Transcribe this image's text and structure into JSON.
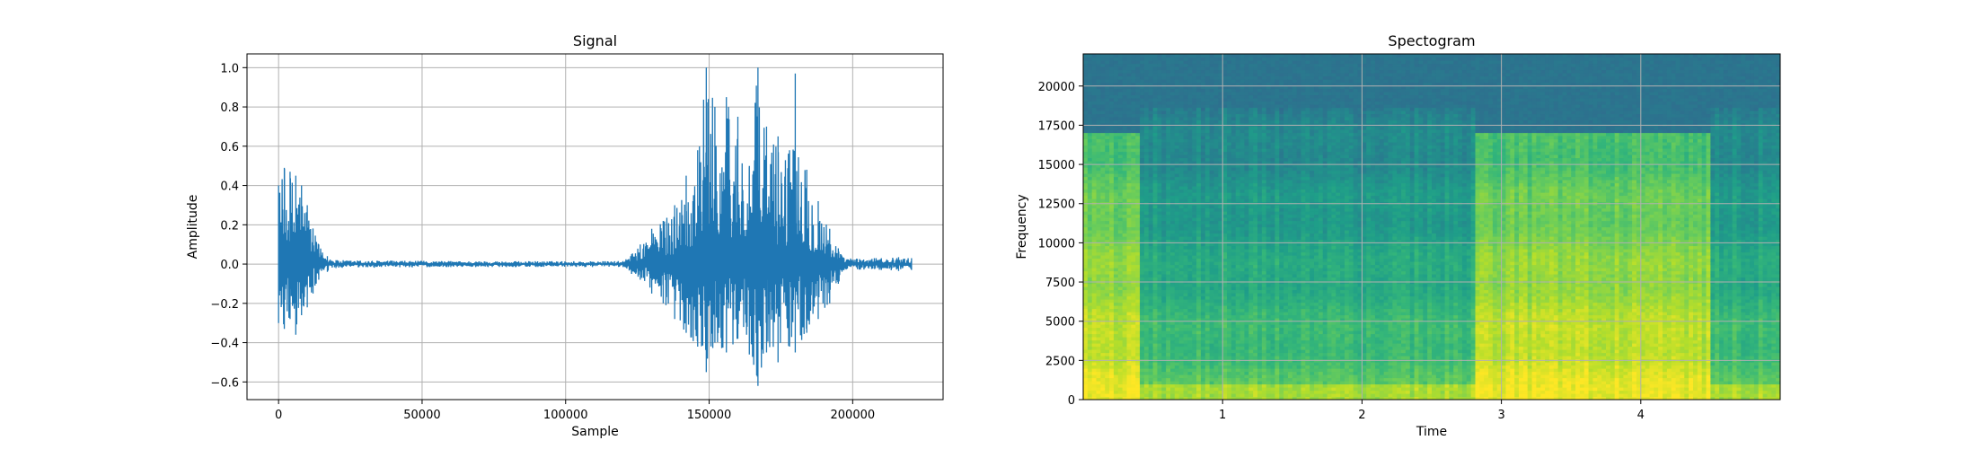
{
  "chart_data": [
    {
      "type": "line",
      "title": "Signal",
      "xlabel": "Sample",
      "ylabel": "Amplitude",
      "xlim": [
        -11000,
        231500
      ],
      "ylim": [
        -0.69,
        1.07
      ],
      "xticks": [
        0,
        50000,
        100000,
        150000,
        200000
      ],
      "xtick_labels": [
        "0",
        "50000",
        "100000",
        "150000",
        "200000"
      ],
      "yticks": [
        -0.6,
        -0.4,
        -0.2,
        0.0,
        0.2,
        0.4,
        0.6,
        0.8,
        1.0
      ],
      "ytick_labels": [
        "−0.6",
        "−0.4",
        "−0.2",
        "0.0",
        "0.2",
        "0.4",
        "0.6",
        "0.8",
        "1.0"
      ],
      "grid": true,
      "series": [
        {
          "color": "#1f77b4",
          "x_start": 0,
          "x_end": 220500,
          "envelope_points": [
            [
              0,
              0.4,
              -0.3
            ],
            [
              2000,
              0.49,
              -0.33
            ],
            [
              4000,
              0.47,
              -0.28
            ],
            [
              6000,
              0.45,
              -0.36
            ],
            [
              8000,
              0.4,
              -0.26
            ],
            [
              10000,
              0.3,
              -0.22
            ],
            [
              12000,
              0.18,
              -0.15
            ],
            [
              14000,
              0.1,
              -0.08
            ],
            [
              17000,
              0.04,
              -0.04
            ],
            [
              20000,
              0.02,
              -0.02
            ],
            [
              60000,
              0.015,
              -0.015
            ],
            [
              120000,
              0.015,
              -0.015
            ],
            [
              123000,
              0.05,
              -0.05
            ],
            [
              126000,
              0.1,
              -0.08
            ],
            [
              130000,
              0.18,
              -0.15
            ],
            [
              134000,
              0.22,
              -0.2
            ],
            [
              138000,
              0.3,
              -0.28
            ],
            [
              142000,
              0.45,
              -0.35
            ],
            [
              146000,
              0.58,
              -0.42
            ],
            [
              149000,
              1.0,
              -0.55
            ],
            [
              152000,
              0.8,
              -0.4
            ],
            [
              156000,
              0.85,
              -0.45
            ],
            [
              160000,
              0.75,
              -0.38
            ],
            [
              164000,
              0.5,
              -0.46
            ],
            [
              167000,
              1.0,
              -0.62
            ],
            [
              170000,
              0.7,
              -0.45
            ],
            [
              174000,
              0.65,
              -0.5
            ],
            [
              178000,
              0.58,
              -0.42
            ],
            [
              180000,
              0.97,
              -0.45
            ],
            [
              184000,
              0.48,
              -0.35
            ],
            [
              188000,
              0.32,
              -0.28
            ],
            [
              192000,
              0.18,
              -0.2
            ],
            [
              195000,
              0.08,
              -0.1
            ],
            [
              197000,
              0.03,
              -0.03
            ],
            [
              210000,
              0.03,
              -0.03
            ],
            [
              216000,
              0.035,
              -0.035
            ],
            [
              220500,
              0.03,
              -0.03
            ]
          ]
        }
      ]
    },
    {
      "type": "heatmap",
      "title": "Spectogram",
      "xlabel": "Time",
      "ylabel": "Frequency",
      "xlim": [
        0.0,
        5.0
      ],
      "ylim": [
        0,
        22050
      ],
      "xticks": [
        1,
        2,
        3,
        4
      ],
      "xtick_labels": [
        "1",
        "2",
        "3",
        "4"
      ],
      "yticks": [
        0,
        2500,
        5000,
        7500,
        10000,
        12500,
        15000,
        17500,
        20000
      ],
      "ytick_labels": [
        "0",
        "2500",
        "5000",
        "7500",
        "10000",
        "12500",
        "15000",
        "17500",
        "20000"
      ],
      "grid": true,
      "colormap": [
        "#31688e",
        "#26828e",
        "#1f9e89",
        "#35b779",
        "#6ece58",
        "#b5de2b",
        "#fde725"
      ],
      "loud_segments": [
        [
          0.0,
          0.42
        ],
        [
          2.8,
          4.5
        ]
      ],
      "quiet_cutoff_hz": 18600,
      "loud_cutoff_hz": 17000
    }
  ]
}
